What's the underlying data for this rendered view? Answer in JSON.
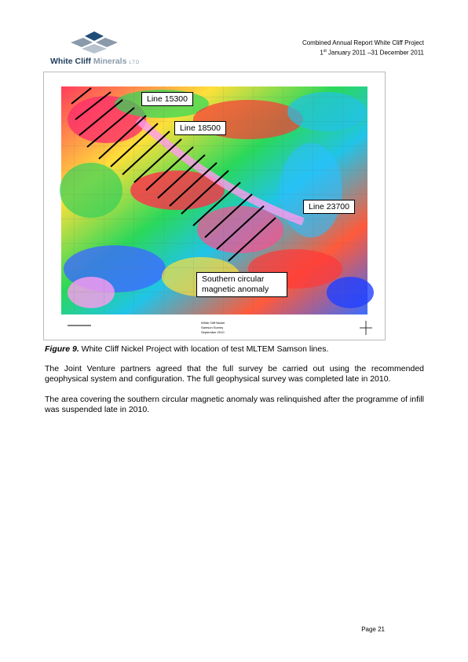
{
  "header": {
    "company_brand": "White Cliff",
    "company_brand_2": "Minerals",
    "company_brand_ltd": "LTD",
    "report_title": "Combined Annual Report White Cliff Project",
    "period_day": "1",
    "period_sup": "st",
    "period_rest": " January 2011 –31 December 2011"
  },
  "figure": {
    "callouts": {
      "line_15300": "Line 15300",
      "line_18500": "Line 18500",
      "line_23700": "Line 23700",
      "southern_line1": "Southern circular",
      "southern_line2": "magnetic anomaly"
    },
    "title_block": [
      "White Cliff Nickel",
      "Samson Survey",
      "September 2010"
    ],
    "caption_label": "Figure 9.",
    "caption_text": "  White Cliff Nickel Project with location of test MLTEM Samson lines."
  },
  "body": {
    "paragraph_1": "The Joint Venture partners agreed that the full survey be carried out using the recommended geophysical system and configuration. The full geophysical survey was completed late in 2010.",
    "paragraph_2": "The area covering the southern circular magnetic anomaly was relinquished after the programme of infill was suspended late in 2010."
  },
  "footer": {
    "page_number": "Page 21"
  },
  "colors": {
    "brand_dark": "#1f3c5a",
    "brand_light": "#8a9aab"
  }
}
